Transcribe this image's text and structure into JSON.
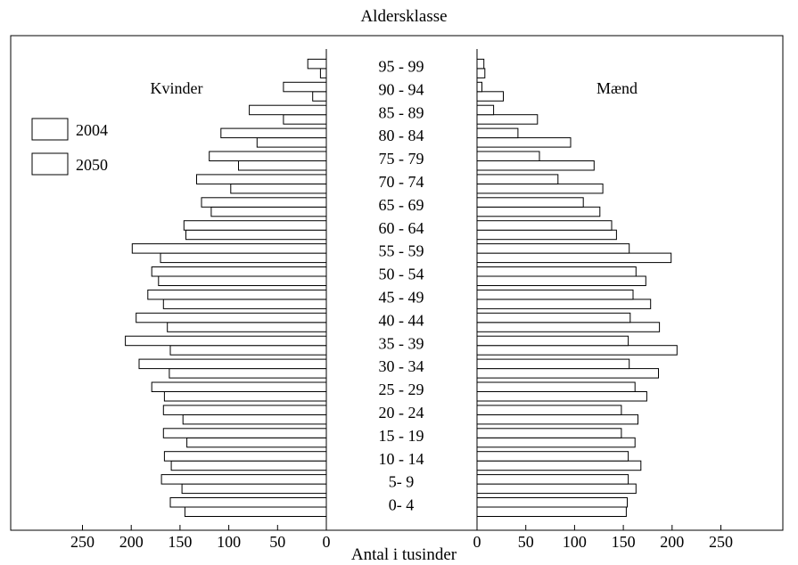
{
  "chart_data": {
    "type": "bar",
    "subtype": "population-pyramid",
    "title": "Aldersklasse",
    "xlabel": "Antal i tusinder",
    "xlim": [
      0,
      250
    ],
    "x_ticks": [
      "250",
      "200",
      "150",
      "100",
      "50",
      "0",
      "0",
      "50",
      "100",
      "150",
      "200",
      "250"
    ],
    "categories": [
      "0- 4",
      "5- 9",
      "10 - 14",
      "15 - 19",
      "20 - 24",
      "25 - 29",
      "30 - 34",
      "35 - 39",
      "40 - 44",
      "45 - 49",
      "50 - 54",
      "55 - 59",
      "60 - 64",
      "65 - 69",
      "70 - 74",
      "75 - 79",
      "80 - 84",
      "85 - 89",
      "90 - 94",
      "95 - 99"
    ],
    "left_panel_label": "Kvinder",
    "right_panel_label": "Mænd",
    "legend": {
      "position": "top-left",
      "entries": [
        "2004",
        "2050"
      ]
    },
    "series": [
      {
        "name": "2004",
        "side": "left",
        "values": [
          145,
          148,
          159,
          143,
          147,
          166,
          161,
          160,
          163,
          167,
          172,
          170,
          144,
          118,
          98,
          90,
          71,
          44,
          14,
          6
        ]
      },
      {
        "name": "2050",
        "side": "left",
        "values": [
          160,
          169,
          166,
          167,
          167,
          179,
          192,
          206,
          195,
          183,
          179,
          199,
          146,
          128,
          133,
          120,
          108,
          79,
          44,
          19
        ]
      },
      {
        "name": "2004",
        "side": "right",
        "values": [
          153,
          163,
          168,
          162,
          165,
          174,
          186,
          205,
          187,
          178,
          173,
          199,
          143,
          126,
          129,
          120,
          96,
          62,
          27,
          8
        ]
      },
      {
        "name": "2050",
        "side": "right",
        "values": [
          154,
          155,
          155,
          148,
          148,
          162,
          156,
          155,
          157,
          160,
          163,
          156,
          138,
          109,
          83,
          64,
          42,
          17,
          5,
          7
        ]
      }
    ],
    "grid": false
  }
}
